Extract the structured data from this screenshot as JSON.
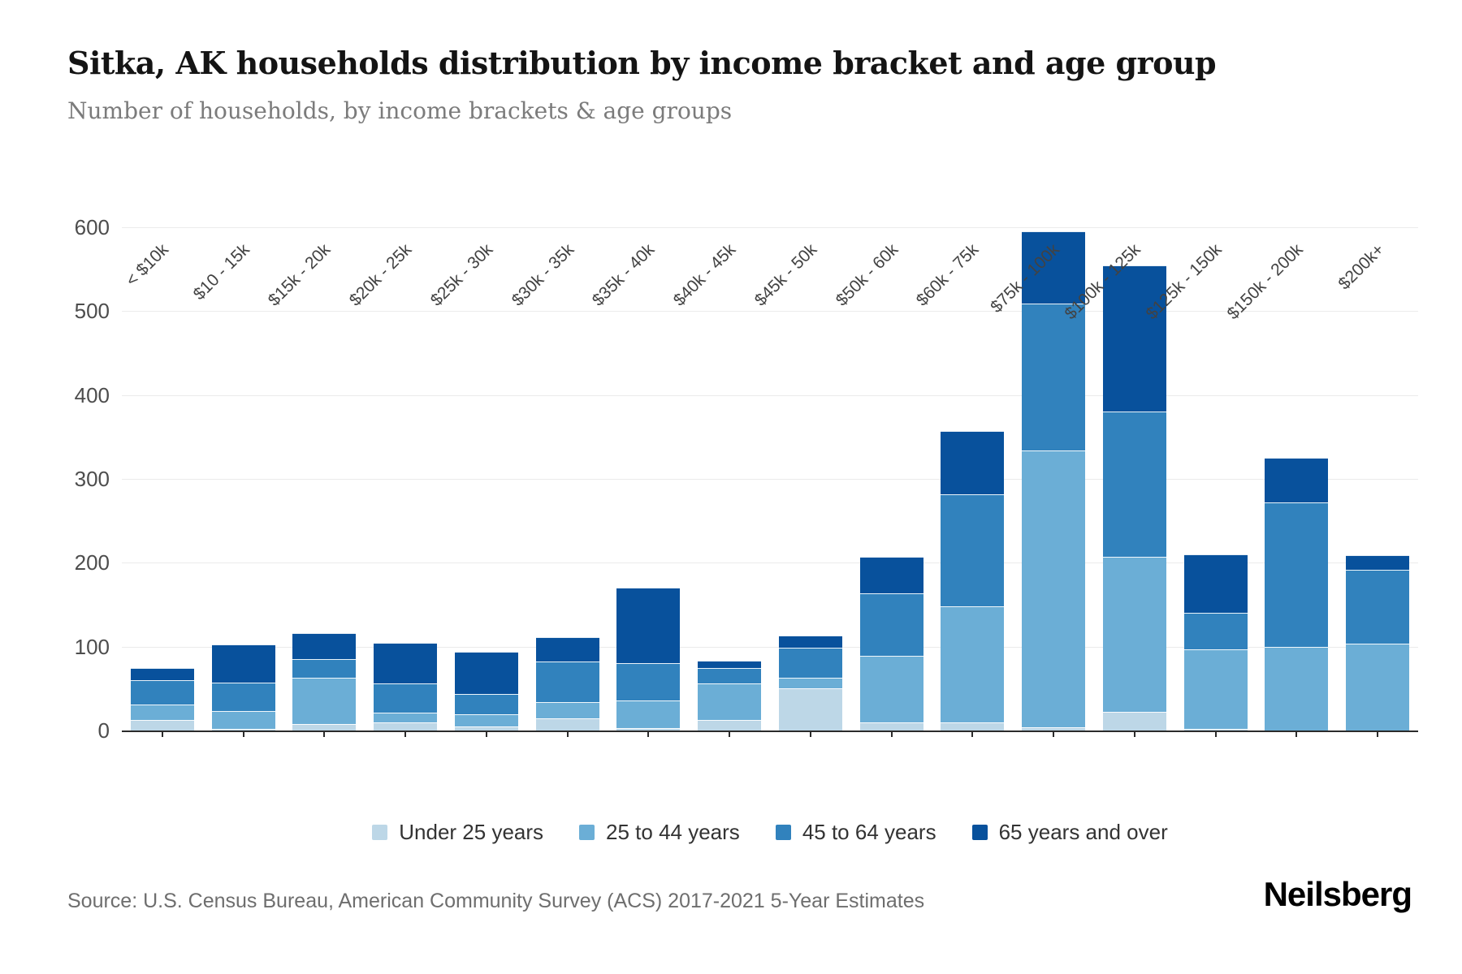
{
  "header": {
    "title": "Sitka, AK households distribution by income bracket and age group",
    "subtitle": "Number of households, by income brackets & age groups"
  },
  "footer": {
    "source": "Source: U.S. Census Bureau, American Community Survey (ACS) 2017-2021 5-Year Estimates",
    "brand": "Neilsberg"
  },
  "chart_data": {
    "type": "bar",
    "stacked": true,
    "title": "Sitka, AK households distribution by income bracket and age group",
    "subtitle": "Number of households, by income brackets & age groups",
    "xlabel": "",
    "ylabel": "",
    "ylim": [
      0,
      600
    ],
    "yticks": [
      0,
      100,
      200,
      300,
      400,
      500,
      600
    ],
    "grid": true,
    "legend_position": "bottom",
    "categories": [
      "< $10k",
      "$10 - 15k",
      "$15k - 20k",
      "$20k - 25k",
      "$25k - 30k",
      "$30k - 35k",
      "$35k - 40k",
      "$40k - 45k",
      "$45k - 50k",
      "$50k - 60k",
      "$60k - 75k",
      "$75k - 100k",
      "$100k - 125k",
      "$125k - 150k",
      "$150k - 200k",
      "$200k+"
    ],
    "series": [
      {
        "name": "Under 25 years",
        "color": "#bdd7e7",
        "values": [
          13,
          2,
          8,
          10,
          5,
          15,
          3,
          13,
          50,
          10,
          10,
          4,
          22,
          2,
          0,
          0
        ]
      },
      {
        "name": "25 to 44 years",
        "color": "#6baed6",
        "values": [
          18,
          21,
          55,
          11,
          14,
          19,
          33,
          43,
          13,
          79,
          138,
          330,
          185,
          95,
          100,
          104
        ]
      },
      {
        "name": "45 to 64 years",
        "color": "#3182bd",
        "values": [
          29,
          34,
          22,
          35,
          25,
          48,
          44,
          19,
          36,
          75,
          134,
          175,
          173,
          43,
          172,
          88
        ]
      },
      {
        "name": "65 years and over",
        "color": "#08519c",
        "values": [
          15,
          46,
          31,
          49,
          50,
          29,
          90,
          8,
          14,
          43,
          75,
          86,
          175,
          70,
          53,
          17
        ]
      }
    ],
    "totals": [
      75,
      103,
      116,
      105,
      94,
      111,
      170,
      83,
      113,
      207,
      357,
      595,
      555,
      210,
      325,
      209
    ]
  }
}
